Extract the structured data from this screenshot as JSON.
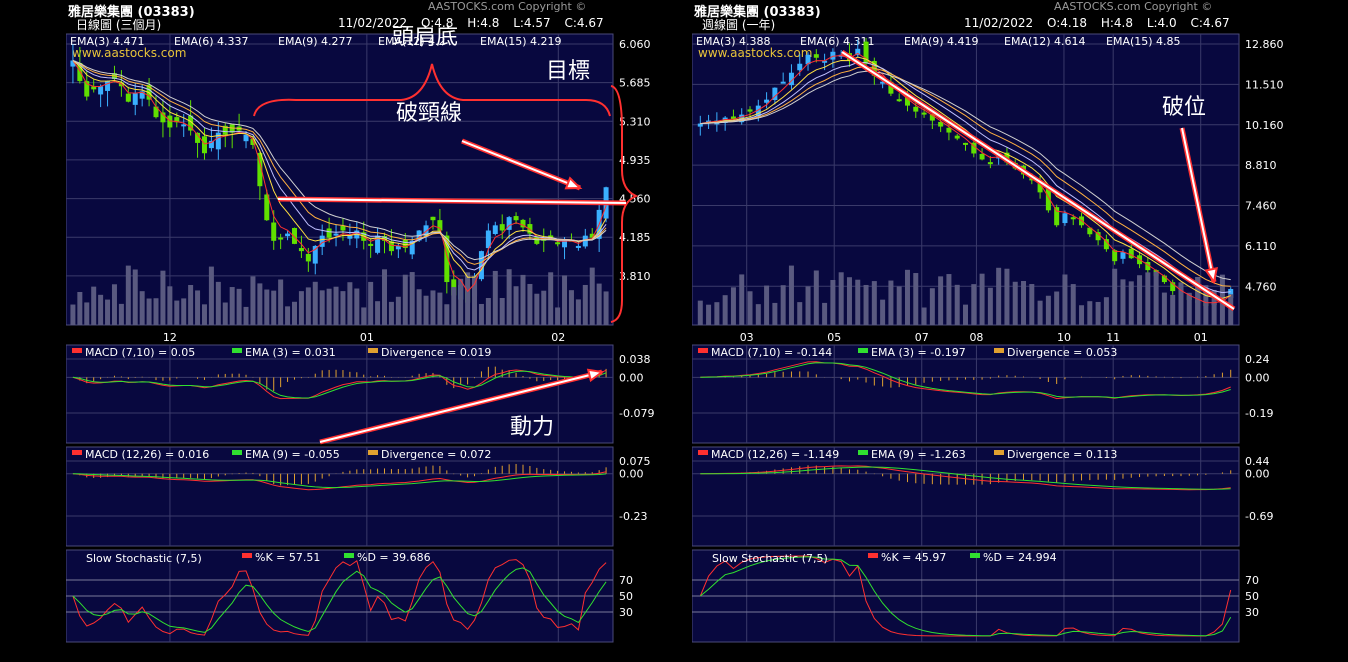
{
  "charts": [
    {
      "id": "left",
      "header": {
        "name": "雅居樂集團 (03383)",
        "copyright": "AASTOCKS.com Copyright ©",
        "period": "日線圖 (三個月)",
        "date": "11/02/2022",
        "open": "O:4.8",
        "high": "H:4.8",
        "low": "L:4.57",
        "close": "C:4.67"
      },
      "watermark": "www.aastocks.com",
      "ema_legend": [
        {
          "label": "EMA(3) 4.471",
          "color": "#ff3030"
        },
        {
          "label": "EMA(6) 4.337",
          "color": "#ffe040"
        },
        {
          "label": "EMA(9) 4.277",
          "color": "#c0c0ff"
        },
        {
          "label": "EMA(12) 4.2",
          "color": "#ffb040"
        },
        {
          "label": "EMA(15) 4.219",
          "color": "#d0d0d0"
        }
      ],
      "annotations": {
        "title": "頭肩底",
        "target": "目標",
        "neckline": "破頸線",
        "momentum": "動力"
      },
      "chart_data": {
        "type": "candlestick",
        "price_axis": {
          "ticks": [
            "6.060",
            "5.685",
            "5.310",
            "4.935",
            "4.560",
            "4.185",
            "3.810"
          ],
          "min": 3.43,
          "max": 6.06
        },
        "x_ticks": [
          {
            "label": "12",
            "pos": 0.19
          },
          {
            "label": "01",
            "pos": 0.55
          },
          {
            "label": "02",
            "pos": 0.9
          }
        ],
        "close": [
          5.9,
          5.7,
          5.55,
          5.62,
          5.65,
          5.7,
          5.72,
          5.65,
          5.5,
          5.58,
          5.6,
          5.52,
          5.35,
          5.3,
          5.25,
          5.3,
          5.28,
          5.22,
          5.1,
          5.0,
          5.12,
          5.2,
          5.18,
          5.2,
          5.22,
          5.18,
          5.08,
          4.68,
          4.35,
          4.15,
          4.18,
          4.22,
          4.12,
          4.05,
          3.95,
          4.1,
          4.2,
          4.18,
          4.22,
          4.25,
          4.2,
          4.25,
          4.15,
          4.1,
          4.2,
          4.15,
          4.05,
          4.1,
          4.08,
          4.15,
          4.25,
          4.3,
          4.35,
          4.25,
          3.75,
          3.62,
          3.72,
          3.55,
          3.8,
          4.05,
          4.25,
          4.3,
          4.25,
          4.38,
          4.35,
          4.28,
          4.22,
          4.12,
          4.15,
          4.17,
          4.12,
          4.15,
          4.15,
          4.1,
          4.2,
          4.18,
          4.45,
          4.67
        ],
        "volume_max": 1.0,
        "macd_710": {
          "legend": [
            "MACD (7,10) = 0.05",
            "EMA (3) = 0.031",
            "Divergence = 0.019"
          ],
          "ticks": [
            "0.038",
            "0.00",
            "-0.079"
          ]
        },
        "macd_1226": {
          "legend": [
            "MACD (12,26) = 0.016",
            "EMA (9) = -0.055",
            "Divergence = 0.072"
          ],
          "ticks": [
            "0.075",
            "0.00",
            "-0.23"
          ]
        },
        "stoch": {
          "legend": [
            "Slow Stochastic (7,5)",
            "%K = 57.51",
            "%D = 39.686"
          ],
          "ticks": [
            "70",
            "50",
            "30"
          ]
        }
      }
    },
    {
      "id": "right",
      "header": {
        "name": "雅居樂集團 (03383)",
        "copyright": "AASTOCKS.com Copyright ©",
        "period": "週線圖 (一年)",
        "date": "11/02/2022",
        "open": "O:4.18",
        "high": "H:4.8",
        "low": "L:4.0",
        "close": "C:4.67"
      },
      "watermark": "www.aastocks.com",
      "ema_legend": [
        {
          "label": "EMA(3) 4.388",
          "color": "#ff3030"
        },
        {
          "label": "EMA(6) 4.311",
          "color": "#ffe040"
        },
        {
          "label": "EMA(9) 4.419",
          "color": "#c0c0ff"
        },
        {
          "label": "EMA(12) 4.614",
          "color": "#ffb040"
        },
        {
          "label": "EMA(15) 4.85",
          "color": "#d0d0d0"
        }
      ],
      "annotations": {
        "breakout": "破位"
      },
      "chart_data": {
        "type": "candlestick",
        "price_axis": {
          "ticks": [
            "12.860",
            "11.510",
            "10.160",
            "8.810",
            "7.460",
            "6.110",
            "4.760"
          ],
          "min": 3.8,
          "max": 12.86
        },
        "x_ticks": [
          {
            "label": "03",
            "pos": 0.1
          },
          {
            "label": "05",
            "pos": 0.26
          },
          {
            "label": "07",
            "pos": 0.42
          },
          {
            "label": "08",
            "pos": 0.52
          },
          {
            "label": "10",
            "pos": 0.68
          },
          {
            "label": "11",
            "pos": 0.77
          },
          {
            "label": "01",
            "pos": 0.93
          }
        ],
        "close": [
          10.2,
          10.3,
          10.3,
          10.4,
          10.35,
          10.5,
          10.6,
          10.8,
          11.0,
          11.4,
          11.6,
          11.9,
          12.2,
          12.5,
          12.4,
          12.3,
          12.6,
          12.5,
          12.3,
          12.7,
          12.2,
          11.8,
          11.6,
          11.2,
          11.0,
          10.8,
          10.6,
          10.5,
          10.3,
          10.1,
          9.9,
          9.7,
          9.5,
          9.2,
          9.0,
          8.9,
          9.1,
          8.9,
          8.7,
          8.5,
          8.3,
          7.9,
          7.3,
          6.8,
          7.2,
          7.0,
          6.8,
          6.5,
          6.3,
          6.0,
          5.6,
          5.9,
          5.7,
          5.5,
          5.3,
          5.1,
          4.9,
          4.6,
          4.4,
          4.3,
          4.2,
          4.1,
          4.2,
          4.3,
          4.67
        ],
        "macd_710": {
          "legend": [
            "MACD (7,10) = -0.144",
            "EMA (3) = -0.197",
            "Divergence = 0.053"
          ],
          "ticks": [
            "0.24",
            "0.00",
            "-0.19"
          ]
        },
        "macd_1226": {
          "legend": [
            "MACD (12,26) = -1.149",
            "EMA (9) = -1.263",
            "Divergence = 0.113"
          ],
          "ticks": [
            "0.44",
            "0.00",
            "-0.69"
          ]
        },
        "stoch": {
          "legend": [
            "Slow Stochastic (7,5)",
            "%K = 45.97",
            "%D = 24.994"
          ],
          "ticks": [
            "70",
            "50",
            "30"
          ]
        }
      }
    }
  ]
}
